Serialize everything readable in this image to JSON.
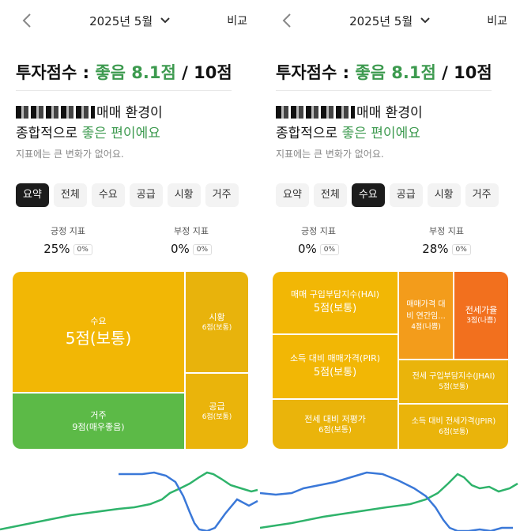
{
  "header": {
    "month": "2025년 5월",
    "compare": "비교"
  },
  "score": {
    "label": "투자점수 : ",
    "grade": "좋음 8.1점",
    "max": " / 10점"
  },
  "headline": {
    "line1_suffix": "매매 환경이",
    "line2_prefix": "종합적으로 ",
    "line2_good": "좋은 편이에요"
  },
  "note": "지표에는 큰 변화가 없어요.",
  "tabs": [
    "요약",
    "전체",
    "수요",
    "공급",
    "시황",
    "거주"
  ],
  "left": {
    "active_tab": 0,
    "positive": {
      "label": "긍정 지표",
      "value": "25%",
      "change": "0%"
    },
    "negative": {
      "label": "부정 지표",
      "value": "0%",
      "change": "0%"
    },
    "treemap": [
      {
        "name": "수요",
        "score": "5점(보통)"
      },
      {
        "name": "시황",
        "score": "6점(보통)"
      },
      {
        "name": "공급",
        "score": "6점(보통)"
      },
      {
        "name": "거주",
        "score": "9점(매우좋음)"
      }
    ]
  },
  "right": {
    "active_tab": 2,
    "positive": {
      "label": "긍정 지표",
      "value": "0%",
      "change": "0%"
    },
    "negative": {
      "label": "부정 지표",
      "value": "28%",
      "change": "0%"
    },
    "treemap": [
      {
        "name": "매매 구입부담지수(HAI)",
        "score": "5점(보통)"
      },
      {
        "name": "매매가격 대비 연간임...",
        "score": "4점(나쁨)"
      },
      {
        "name": "전세가율",
        "score": "3점(나쁨)"
      },
      {
        "name": "소득 대비 매매가격(PIR)",
        "score": "5점(보통)"
      },
      {
        "name": "전세 구입부담지수(JHAI)",
        "score": "5점(보통)"
      },
      {
        "name": "전세 대비 저평가",
        "score": "6점(보통)"
      },
      {
        "name": "소득 대비 전세가격(JPIR)",
        "score": "6점(보통)"
      }
    ]
  },
  "colors": {
    "good": "#3d9a4f",
    "normal": "#f2b705",
    "bad_light": "#f39c1b",
    "bad": "#f2701e",
    "very_good": "#5cba47",
    "blue_line": "#3a78d8",
    "green_line": "#2fb36b"
  }
}
